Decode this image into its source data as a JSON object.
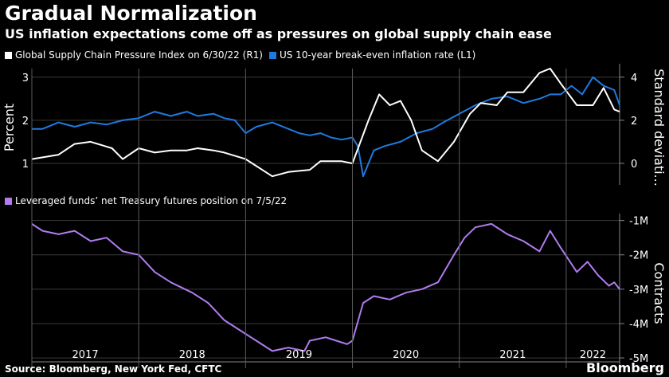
{
  "title": "Gradual Normalization",
  "subtitle": "US inflation expectations come off as pressures on global supply chain ease",
  "source": "Source: Bloomberg, New York Fed, CFTC",
  "brand": "Bloomberg",
  "colors": {
    "background": "#000000",
    "white_series": "#ffffff",
    "blue_series": "#1f7ae0",
    "purple_series": "#b07cf0",
    "grid": "#3a3a3a"
  },
  "chart_data": [
    {
      "type": "line",
      "legend_placement": "top-left",
      "y_left": {
        "label": "Percent",
        "ticks": [
          "1",
          "2",
          "3"
        ],
        "range": [
          0.5,
          3.2
        ]
      },
      "y_right": {
        "label": "Standard deviati...",
        "ticks": [
          "0",
          "2",
          "4"
        ],
        "range": [
          -1.0,
          4.4
        ]
      },
      "grid": true,
      "series": [
        {
          "name": "Global Supply Chain Pressure Index on 6/30/22 (R1)",
          "axis": "right",
          "color": "#ffffff",
          "x": [
            2017.0,
            2017.25,
            2017.4,
            2017.55,
            2017.75,
            2017.85,
            2018.0,
            2018.15,
            2018.3,
            2018.45,
            2018.55,
            2018.7,
            2018.8,
            2019.0,
            2019.25,
            2019.4,
            2019.6,
            2019.7,
            2019.8,
            2019.9,
            2020.0,
            2020.15,
            2020.25,
            2020.35,
            2020.45,
            2020.55,
            2020.65,
            2020.8,
            2020.95,
            2021.1,
            2021.2,
            2021.35,
            2021.45,
            2021.6,
            2021.75,
            2021.85,
            2021.95,
            2022.1,
            2022.25,
            2022.35,
            2022.45,
            2022.5
          ],
          "y": [
            0.2,
            0.4,
            0.9,
            1.0,
            0.7,
            0.2,
            0.7,
            0.5,
            0.6,
            0.6,
            0.7,
            0.6,
            0.5,
            0.2,
            -0.6,
            -0.4,
            -0.3,
            0.1,
            0.1,
            0.1,
            0.0,
            2.0,
            3.2,
            2.7,
            2.9,
            2.0,
            0.6,
            0.1,
            1.0,
            2.3,
            2.8,
            2.7,
            3.3,
            3.3,
            4.2,
            4.4,
            3.7,
            2.7,
            2.7,
            3.5,
            2.5,
            2.4
          ]
        },
        {
          "name": "US 10-year break-even inflation rate (L1)",
          "axis": "left",
          "color": "#1f7ae0",
          "x": [
            2017.0,
            2017.1,
            2017.25,
            2017.4,
            2017.55,
            2017.7,
            2017.85,
            2018.0,
            2018.15,
            2018.3,
            2018.45,
            2018.55,
            2018.7,
            2018.8,
            2018.9,
            2019.0,
            2019.1,
            2019.25,
            2019.4,
            2019.5,
            2019.6,
            2019.7,
            2019.8,
            2019.9,
            2020.0,
            2020.05,
            2020.1,
            2020.2,
            2020.3,
            2020.45,
            2020.6,
            2020.75,
            2020.85,
            2021.0,
            2021.15,
            2021.3,
            2021.45,
            2021.6,
            2021.75,
            2021.85,
            2021.95,
            2022.05,
            2022.15,
            2022.25,
            2022.35,
            2022.45,
            2022.5
          ],
          "y": [
            1.8,
            1.8,
            1.95,
            1.85,
            1.95,
            1.9,
            2.0,
            2.05,
            2.2,
            2.1,
            2.2,
            2.1,
            2.15,
            2.05,
            2.0,
            1.7,
            1.85,
            1.95,
            1.8,
            1.7,
            1.65,
            1.7,
            1.6,
            1.55,
            1.6,
            1.4,
            0.7,
            1.3,
            1.4,
            1.5,
            1.7,
            1.8,
            1.95,
            2.15,
            2.35,
            2.5,
            2.55,
            2.4,
            2.5,
            2.6,
            2.6,
            2.8,
            2.6,
            3.0,
            2.8,
            2.7,
            2.35
          ]
        }
      ]
    },
    {
      "type": "line",
      "legend_placement": "top-left",
      "y_right": {
        "label": "Contracts",
        "ticks": [
          "-1M",
          "-2M",
          "-3M",
          "-4M",
          "-5M"
        ],
        "range": [
          -5.0,
          -1.0
        ]
      },
      "grid": true,
      "x_ticks": [
        "2017",
        "2018",
        "2019",
        "2020",
        "2021",
        "2022"
      ],
      "x_range": [
        2017.0,
        2022.5
      ],
      "series": [
        {
          "name": "Leveraged funds’ net Treasury futures position on 7/5/22",
          "axis": "right",
          "color": "#b07cf0",
          "x": [
            2017.0,
            2017.1,
            2017.25,
            2017.4,
            2017.55,
            2017.7,
            2017.85,
            2018.0,
            2018.15,
            2018.3,
            2018.5,
            2018.65,
            2018.8,
            2018.95,
            2019.1,
            2019.25,
            2019.4,
            2019.55,
            2019.6,
            2019.75,
            2019.85,
            2019.95,
            2020.0,
            2020.1,
            2020.2,
            2020.35,
            2020.5,
            2020.65,
            2020.8,
            2020.95,
            2021.05,
            2021.15,
            2021.3,
            2021.45,
            2021.6,
            2021.75,
            2021.85,
            2021.95,
            2022.1,
            2022.2,
            2022.3,
            2022.4,
            2022.45,
            2022.5
          ],
          "y": [
            -1.1,
            -1.3,
            -1.4,
            -1.3,
            -1.6,
            -1.5,
            -1.9,
            -2.0,
            -2.5,
            -2.8,
            -3.1,
            -3.4,
            -3.9,
            -4.2,
            -4.5,
            -4.8,
            -4.7,
            -4.8,
            -4.5,
            -4.4,
            -4.5,
            -4.6,
            -4.5,
            -3.4,
            -3.2,
            -3.3,
            -3.1,
            -3.0,
            -2.8,
            -2.0,
            -1.5,
            -1.2,
            -1.1,
            -1.4,
            -1.6,
            -1.9,
            -1.3,
            -1.8,
            -2.5,
            -2.2,
            -2.6,
            -2.9,
            -2.8,
            -3.0
          ]
        }
      ]
    }
  ]
}
